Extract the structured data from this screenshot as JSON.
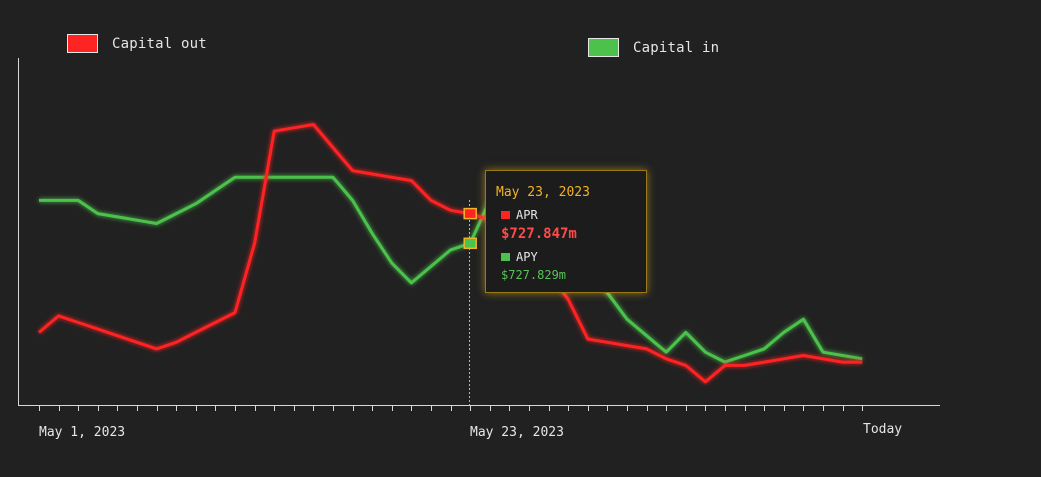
{
  "colors": {
    "background": "#212121",
    "capital_out": "#ff2424",
    "capital_in": "#4cc24c",
    "axis": "#d8d8d8",
    "highlight": "#f0b429",
    "text": "#e6e6e6"
  },
  "legend": {
    "capital_out_label": "Capital out",
    "capital_in_label": "Capital in"
  },
  "x_axis": {
    "start_label": "May 1, 2023",
    "mid_label": "May 23, 2023",
    "end_label": "Today"
  },
  "tooltip": {
    "date": "May 23, 2023",
    "series1_name": "APR",
    "series1_value": "$727.847m",
    "series2_name": "APY",
    "series2_value": "$727.829m"
  },
  "chart_data": {
    "type": "line",
    "x_labels_shown": [
      "May 1, 2023",
      "May 23, 2023",
      "Today"
    ],
    "y_axis_labels": "none",
    "highlighted_index": 22,
    "grid": false,
    "legend_position": "top",
    "series": [
      {
        "name": "Capital out",
        "color": "#ff2424",
        "values": [
          22,
          27,
          25,
          23,
          21,
          19,
          17,
          19,
          22,
          25,
          28,
          49,
          83,
          84,
          85,
          78,
          71,
          70,
          69,
          68,
          62,
          59,
          58,
          56,
          50,
          46,
          40,
          32,
          20,
          19,
          18,
          17,
          14,
          12,
          7,
          12,
          12,
          13,
          14,
          15,
          14,
          13,
          13
        ]
      },
      {
        "name": "Capital in",
        "color": "#4cc24c",
        "values": [
          62,
          62,
          62,
          58,
          57,
          56,
          55,
          58,
          61,
          65,
          69,
          69,
          69,
          69,
          69,
          69,
          62,
          52,
          43,
          37,
          42,
          47,
          49,
          62,
          70,
          65,
          59,
          47,
          39,
          34,
          26,
          21,
          16,
          22,
          16,
          13,
          15,
          17,
          22,
          26,
          16,
          15,
          14
        ]
      }
    ]
  }
}
